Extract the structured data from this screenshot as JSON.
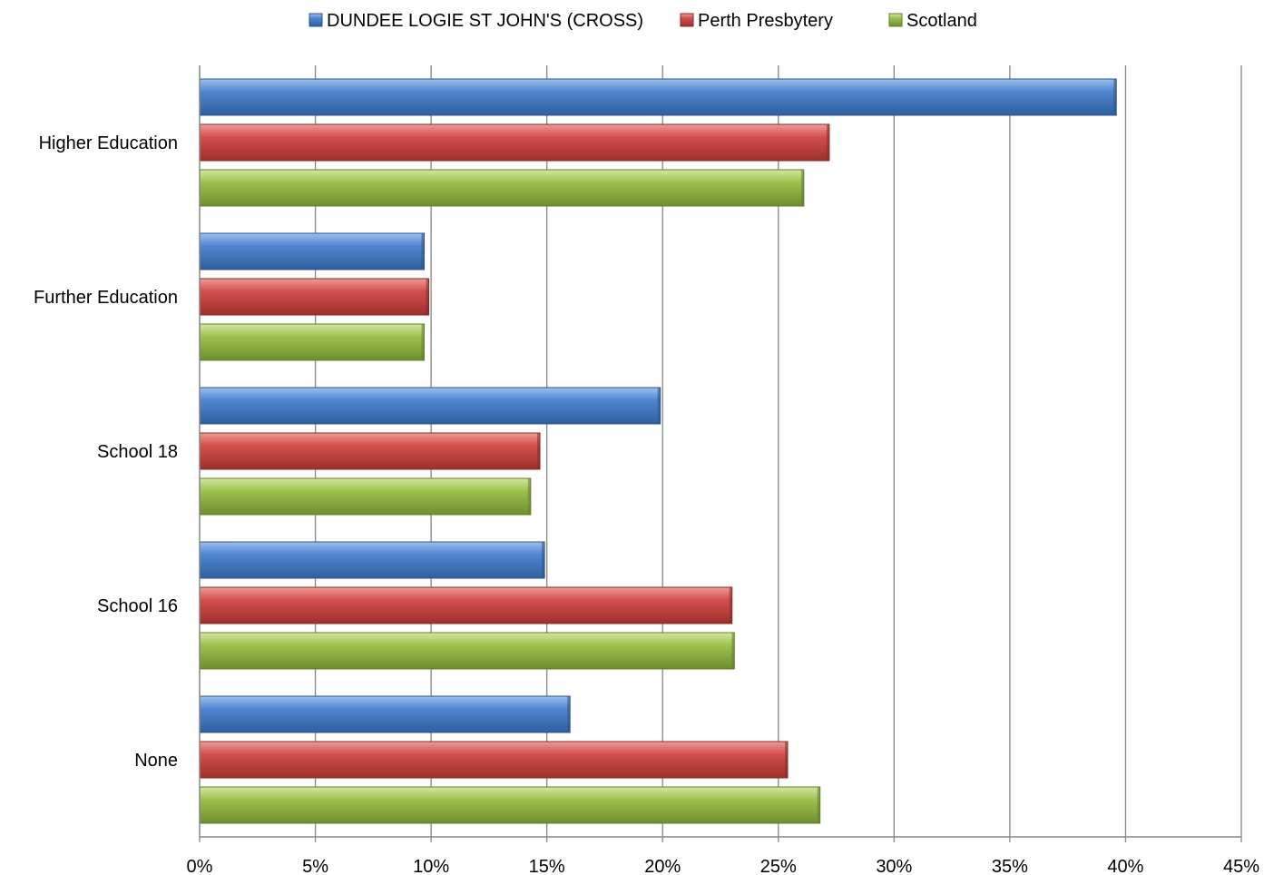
{
  "chart_data": {
    "type": "bar",
    "orientation": "horizontal",
    "categories": [
      "Higher Education",
      "Further Education",
      "School 18",
      "School 16",
      "None"
    ],
    "series": [
      {
        "name": "DUNDEE LOGIE ST JOHN'S (CROSS)",
        "color": "#4a7ebb",
        "values": [
          39.6,
          9.7,
          19.9,
          14.9,
          16.0
        ]
      },
      {
        "name": "Perth Presbytery",
        "color": "#c0504d",
        "values": [
          27.2,
          9.9,
          14.7,
          23.0,
          25.4
        ]
      },
      {
        "name": "Scotland",
        "color": "#9bbb59",
        "values": [
          26.1,
          9.7,
          14.3,
          23.1,
          26.8
        ]
      }
    ],
    "x_ticks": [
      "0%",
      "5%",
      "10%",
      "15%",
      "20%",
      "25%",
      "30%",
      "35%",
      "40%",
      "45%"
    ],
    "xlim": [
      0,
      45
    ],
    "grid": true,
    "legend_position": "top"
  }
}
